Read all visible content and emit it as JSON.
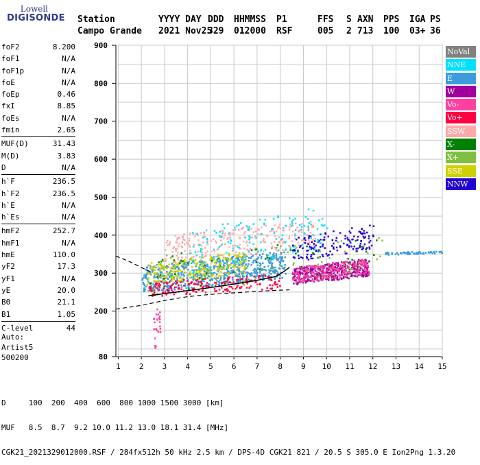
{
  "logo": {
    "line1": "Lowell",
    "line2": "DIGISONDE"
  },
  "header": {
    "labels": [
      "Station",
      "YYYY DAY",
      "DDD",
      "HHMMSS",
      "P1",
      "FFS",
      "S",
      "AXN",
      "PPS",
      "IGA",
      "PS"
    ],
    "values": [
      "Campo Grande",
      "2021 Nov25",
      "329",
      "012000",
      "RSF",
      "005",
      "2",
      "713",
      "100",
      "03+",
      "36"
    ]
  },
  "params": [
    {
      "name": "foF2",
      "value": "8.200"
    },
    {
      "name": "foF1",
      "value": "N/A"
    },
    {
      "name": "foF1p",
      "value": "N/A"
    },
    {
      "name": "foE",
      "value": "N/A"
    },
    {
      "name": "foEp",
      "value": "0.46"
    },
    {
      "name": "fxI",
      "value": "8.85"
    },
    {
      "name": "foEs",
      "value": "N/A"
    },
    {
      "name": "fmin",
      "value": "2.65"
    },
    {
      "name": "MUF(D)",
      "value": "31.43"
    },
    {
      "name": "M(D)",
      "value": "3.83"
    },
    {
      "name": "D",
      "value": "N/A"
    },
    {
      "name": "h`F",
      "value": "236.5"
    },
    {
      "name": "h`F2",
      "value": "236.5"
    },
    {
      "name": "h`E",
      "value": "N/A"
    },
    {
      "name": "h`Es",
      "value": "N/A"
    },
    {
      "name": "hmF2",
      "value": "252.7"
    },
    {
      "name": "hmF1",
      "value": "N/A"
    },
    {
      "name": "hmE",
      "value": "110.0"
    },
    {
      "name": "yF2",
      "value": "17.3"
    },
    {
      "name": "yF1",
      "value": "N/A"
    },
    {
      "name": "yE",
      "value": "20.0"
    },
    {
      "name": "B0",
      "value": "21.1"
    },
    {
      "name": "B1",
      "value": "1.05"
    },
    {
      "name": "C-level",
      "value": "44"
    }
  ],
  "auto": [
    "Auto:",
    "Artist5",
    "500200"
  ],
  "legend": [
    {
      "label": "NoVal",
      "color": "#808080"
    },
    {
      "label": "NNE",
      "color": "#00e0ff"
    },
    {
      "label": "E",
      "color": "#3c9cdc"
    },
    {
      "label": "W",
      "color": "#a0009c"
    },
    {
      "label": "Vo-",
      "color": "#ff40a0"
    },
    {
      "label": "Vo+",
      "color": "#ff0040"
    },
    {
      "label": "SSW",
      "color": "#ffa8a8"
    },
    {
      "label": "X-",
      "color": "#008000"
    },
    {
      "label": "X+",
      "color": "#80c040"
    },
    {
      "label": "SSE",
      "color": "#d0d000"
    },
    {
      "label": "NNW",
      "color": "#2000d0"
    }
  ],
  "footer": {
    "distance_line": "D     100  200  400  600  800 1000 1500 3000 [km]",
    "muf_line": "MUF   8.5  8.7  9.2 10.0 11.2 13.0 18.1 31.4 [MHz]",
    "info_line": "CGK21_2021329012000.RSF / 284fx512h 50 kHz 2.5 km / DPS-4D CGK21 821 / 20.5 S 305.0 E Ion2Png 1.3.20"
  },
  "chart_data": {
    "type": "scatter",
    "x_ticks": [
      1,
      2,
      3,
      4,
      5,
      6,
      7,
      8,
      9,
      10,
      11,
      12,
      13,
      14,
      15
    ],
    "y_ticks": [
      80,
      200,
      300,
      400,
      500,
      600,
      700,
      800,
      900
    ],
    "xlim": [
      0.9,
      15
    ],
    "ylim": [
      80,
      900
    ],
    "grid": true,
    "legend_position": "right",
    "ionogram_trace": {
      "x": [
        2.3,
        3.0,
        4.0,
        5.0,
        6.0,
        7.0,
        7.8,
        8.1,
        8.4
      ],
      "y": [
        240,
        246,
        254,
        262,
        271,
        281,
        291,
        302,
        315
      ]
    },
    "model_curve": {
      "x": [
        0.9,
        2.0,
        3.0,
        4.0,
        5.0,
        6.0,
        7.0,
        8.0,
        8.4
      ],
      "y": [
        205,
        215,
        228,
        238,
        244,
        248,
        252,
        255,
        256
      ]
    },
    "model_curve_upper": {
      "x": [
        0.9,
        1.5,
        2.0,
        2.5
      ],
      "y": [
        345,
        330,
        315,
        300
      ]
    },
    "clusters": [
      {
        "color": "#3c9cdc",
        "x": [
          2.0,
          8.2
        ],
        "y": [
          250,
          360
        ],
        "n": 700
      },
      {
        "color": "#d0d000",
        "x": [
          2.2,
          6.5
        ],
        "y": [
          270,
          360
        ],
        "n": 260
      },
      {
        "color": "#ffa8a8",
        "x": [
          3.0,
          9.5
        ],
        "y": [
          330,
          440
        ],
        "n": 260
      },
      {
        "color": "#a0009c",
        "x": [
          8.5,
          11.8
        ],
        "y": [
          270,
          340
        ],
        "n": 380
      },
      {
        "color": "#ff40a0",
        "x": [
          8.5,
          11.8
        ],
        "y": [
          275,
          340
        ],
        "n": 220
      },
      {
        "color": "#ff0040",
        "x": [
          2.3,
          8.0
        ],
        "y": [
          240,
          300
        ],
        "n": 200
      },
      {
        "color": "#2000d0",
        "x": [
          8.5,
          12.0
        ],
        "y": [
          330,
          430
        ],
        "n": 150
      },
      {
        "color": "#00e0ff",
        "x": [
          4.0,
          10.0
        ],
        "y": [
          300,
          480
        ],
        "n": 150
      },
      {
        "color": "#008000",
        "x": [
          2.3,
          12.5
        ],
        "y": [
          250,
          400
        ],
        "n": 60
      },
      {
        "color": "#80c040",
        "x": [
          2.3,
          12.5
        ],
        "y": [
          250,
          400
        ],
        "n": 60
      },
      {
        "color": "#3c9cdc",
        "x": [
          12.5,
          15.0
        ],
        "y": [
          350,
          360
        ],
        "n": 60
      },
      {
        "color": "#ff40a0",
        "x": [
          2.5,
          2.8
        ],
        "y": [
          90,
          230
        ],
        "n": 25
      }
    ]
  }
}
